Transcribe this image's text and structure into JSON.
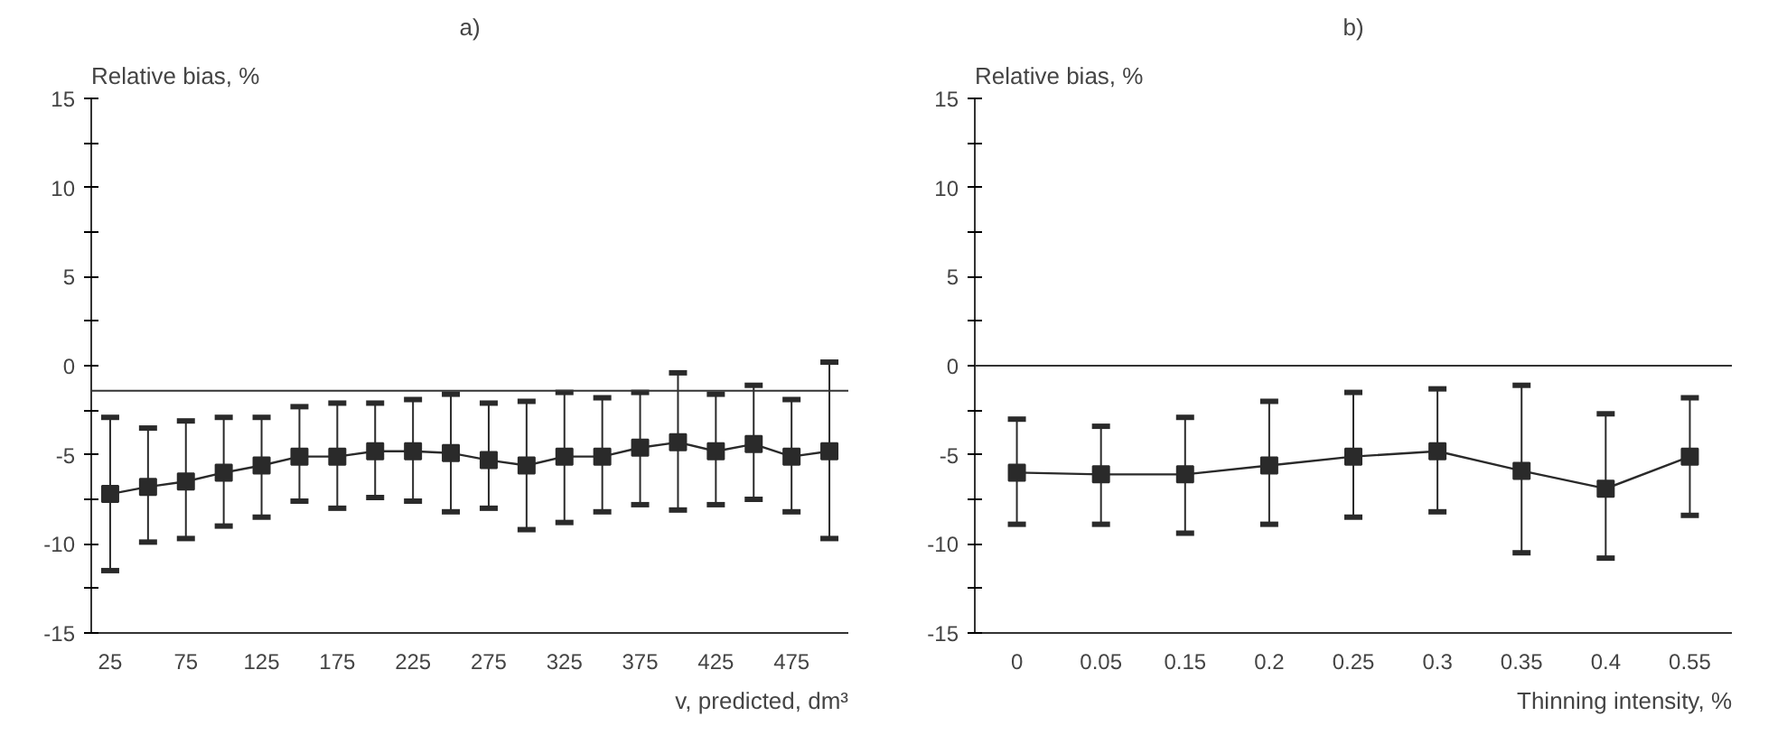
{
  "chart_data": [
    {
      "type": "line",
      "title": "a)",
      "ylabel": "Relative bias, %",
      "xlabel": "v, predicted, dm³",
      "categories": [
        "25",
        null,
        "75",
        null,
        "125",
        null,
        "175",
        null,
        "225",
        null,
        "275",
        null,
        "325",
        null,
        "375",
        null,
        "425",
        null,
        "475",
        null
      ],
      "series": [
        {
          "color": "#2a2a2a",
          "values": [
            -7.2,
            -6.8,
            -6.5,
            -6.0,
            -5.6,
            -5.1,
            -5.1,
            -4.8,
            -4.8,
            -4.9,
            -5.3,
            -5.6,
            -5.1,
            -5.1,
            -4.6,
            -4.3,
            -4.8,
            -4.4,
            -5.1,
            -4.8
          ],
          "errors": [
            [
              -11.5,
              -2.9
            ],
            [
              -9.9,
              -3.5
            ],
            [
              -9.7,
              -3.1
            ],
            [
              -9.0,
              -2.9
            ],
            [
              -8.5,
              -2.9
            ],
            [
              -7.6,
              -2.3
            ],
            [
              -8.0,
              -2.1
            ],
            [
              -7.4,
              -2.1
            ],
            [
              -7.6,
              -1.9
            ],
            [
              -8.2,
              -1.6
            ],
            [
              -8.0,
              -2.1
            ],
            [
              -9.2,
              -2.0
            ],
            [
              -8.8,
              -1.5
            ],
            [
              -8.2,
              -1.8
            ],
            [
              -7.8,
              -1.5
            ],
            [
              -8.1,
              -0.4
            ],
            [
              -7.8,
              -1.6
            ],
            [
              -7.5,
              -1.1
            ],
            [
              -8.2,
              -1.9
            ],
            [
              -9.7,
              0.2
            ]
          ]
        }
      ],
      "ylim": [
        -15,
        15
      ],
      "yticks": [
        -15,
        {
          "value": -12.5,
          "label": null
        },
        -10,
        {
          "value": -7.5,
          "label": null
        },
        -5,
        {
          "value": -2.5,
          "label": null
        },
        0,
        {
          "value": 2.5,
          "label": null
        },
        5,
        {
          "value": 7.5,
          "label": null
        },
        10,
        {
          "value": 12.5,
          "label": null
        },
        15
      ],
      "ref_lines": [
        {
          "axis": "y",
          "value": -1.4,
          "label": null
        }
      ],
      "marker": "square",
      "grid": false
    },
    {
      "type": "line",
      "title": "b)",
      "ylabel": "Relative bias, %",
      "xlabel": "Thinning intensity, %",
      "categories": [
        "0",
        "0.05",
        "0.15",
        "0.2",
        "0.25",
        "0.3",
        "0.35",
        "0.4",
        "0.55"
      ],
      "series": [
        {
          "color": "#2a2a2a",
          "values": [
            -6.0,
            -6.1,
            -6.1,
            -5.6,
            -5.1,
            -4.8,
            -5.9,
            -6.9,
            -5.1
          ],
          "errors": [
            [
              -8.9,
              -3.0
            ],
            [
              -8.9,
              -3.4
            ],
            [
              -9.4,
              -2.9
            ],
            [
              -8.9,
              -2.0
            ],
            [
              -8.5,
              -1.5
            ],
            [
              -8.2,
              -1.3
            ],
            [
              -10.5,
              -1.1
            ],
            [
              -10.8,
              -2.7
            ],
            [
              -8.4,
              -1.8
            ]
          ]
        }
      ],
      "ylim": [
        -15,
        15
      ],
      "yticks": [
        -15,
        {
          "value": -12.5,
          "label": null
        },
        -10,
        {
          "value": -7.5,
          "label": null
        },
        -5,
        {
          "value": -2.5,
          "label": null
        },
        0,
        {
          "value": 2.5,
          "label": null
        },
        5,
        {
          "value": 7.5,
          "label": null
        },
        10,
        {
          "value": 12.5,
          "label": null
        },
        15
      ],
      "ref_lines": [
        {
          "axis": "y",
          "value": 0,
          "label": null
        }
      ],
      "marker": "square",
      "grid": false
    }
  ]
}
